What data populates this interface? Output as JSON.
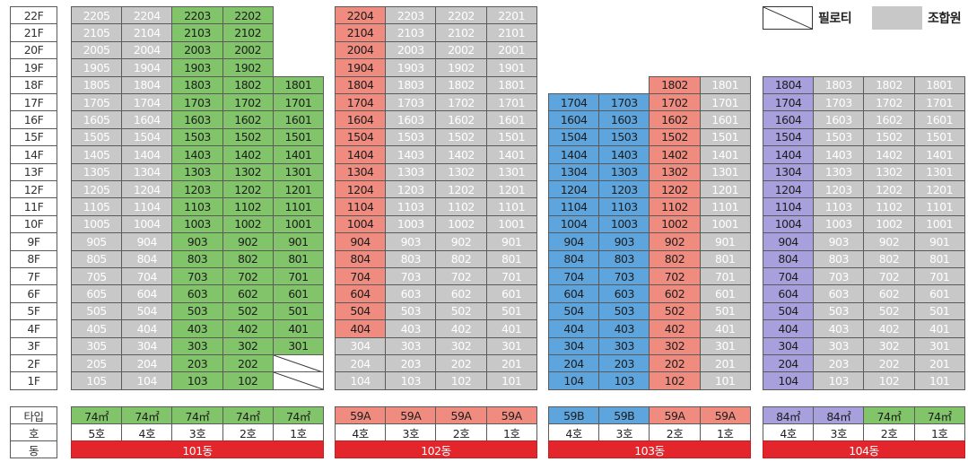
{
  "legend": {
    "piloti_label": "필로티",
    "member_label": "조합원"
  },
  "colors": {
    "grey": "#c8c8c8",
    "green": "#82c46a",
    "red": "#ef8b7f",
    "blue": "#5ea5de",
    "purple": "#a8a0dc",
    "dong": "#e3262b"
  },
  "floors": [
    "22F",
    "21F",
    "20F",
    "19F",
    "18F",
    "17F",
    "16F",
    "15F",
    "14F",
    "13F",
    "12F",
    "11F",
    "10F",
    "9F",
    "8F",
    "7F",
    "6F",
    "5F",
    "4F",
    "3F",
    "2F",
    "1F"
  ],
  "row_labels": {
    "type": "타입",
    "unit": "호",
    "dong": "동"
  },
  "buildings": [
    {
      "name": "101동",
      "lines": [
        {
          "line": "05",
          "type": "74㎡",
          "unit": "5호",
          "top": 22,
          "bottom": 1,
          "greenMin": 0,
          "greenMax": -1,
          "piloti": []
        },
        {
          "line": "04",
          "type": "74㎡",
          "unit": "4호",
          "top": 22,
          "bottom": 1,
          "greenMin": 0,
          "greenMax": -1,
          "piloti": []
        },
        {
          "line": "03",
          "type": "74㎡",
          "unit": "3호",
          "top": 22,
          "bottom": 1,
          "greenMin": 1,
          "greenMax": 22,
          "piloti": []
        },
        {
          "line": "02",
          "type": "74㎡",
          "unit": "2호",
          "top": 22,
          "bottom": 1,
          "greenMin": 1,
          "greenMax": 22,
          "piloti": []
        },
        {
          "line": "01",
          "type": "74㎡",
          "unit": "1호",
          "top": 18,
          "bottom": 3,
          "greenMin": 3,
          "greenMax": 18,
          "piloti": [
            2,
            1
          ]
        }
      ],
      "type_color": "green"
    },
    {
      "name": "102동",
      "lines": [
        {
          "line": "04",
          "type": "59A",
          "unit": "4호",
          "top": 22,
          "bottom": 1,
          "greenMin": 4,
          "greenMax": 22,
          "piloti": []
        },
        {
          "line": "03",
          "type": "59A",
          "unit": "3호",
          "top": 22,
          "bottom": 1,
          "greenMin": 0,
          "greenMax": -1,
          "piloti": []
        },
        {
          "line": "02",
          "type": "59A",
          "unit": "2호",
          "top": 22,
          "bottom": 1,
          "greenMin": 0,
          "greenMax": -1,
          "piloti": []
        },
        {
          "line": "01",
          "type": "59A",
          "unit": "1호",
          "top": 22,
          "bottom": 1,
          "greenMin": 0,
          "greenMax": -1,
          "piloti": []
        }
      ],
      "type_color": "red"
    },
    {
      "name": "103동",
      "lines": [
        {
          "line": "04",
          "type": "59B",
          "unit": "4호",
          "top": 17,
          "bottom": 1,
          "greenMin": 1,
          "greenMax": 17,
          "piloti": [],
          "color": "blue"
        },
        {
          "line": "03",
          "type": "59B",
          "unit": "3호",
          "top": 17,
          "bottom": 1,
          "greenMin": 1,
          "greenMax": 17,
          "piloti": [],
          "color": "blue"
        },
        {
          "line": "02",
          "type": "59A",
          "unit": "2호",
          "top": 18,
          "bottom": 1,
          "greenMin": 1,
          "greenMax": 18,
          "piloti": [],
          "color": "red"
        },
        {
          "line": "01",
          "type": "59A",
          "unit": "1호",
          "top": 18,
          "bottom": 1,
          "greenMin": 0,
          "greenMax": -1,
          "piloti": [],
          "color": "red"
        }
      ],
      "type_color": "mixed"
    },
    {
      "name": "104동",
      "lines": [
        {
          "line": "04",
          "type": "84㎡",
          "unit": "4호",
          "top": 18,
          "bottom": 1,
          "greenMin": 1,
          "greenMax": 18,
          "piloti": [],
          "color": "purple"
        },
        {
          "line": "03",
          "type": "84㎡",
          "unit": "3호",
          "top": 18,
          "bottom": 1,
          "greenMin": 0,
          "greenMax": -1,
          "piloti": [],
          "color": "purple"
        },
        {
          "line": "02",
          "type": "74㎡",
          "unit": "2호",
          "top": 18,
          "bottom": 1,
          "greenMin": 0,
          "greenMax": -1,
          "piloti": [],
          "color": "green"
        },
        {
          "line": "01",
          "type": "74㎡",
          "unit": "1호",
          "top": 18,
          "bottom": 1,
          "greenMin": 0,
          "greenMax": -1,
          "piloti": [],
          "color": "green"
        }
      ],
      "type_color": "mixed"
    }
  ]
}
